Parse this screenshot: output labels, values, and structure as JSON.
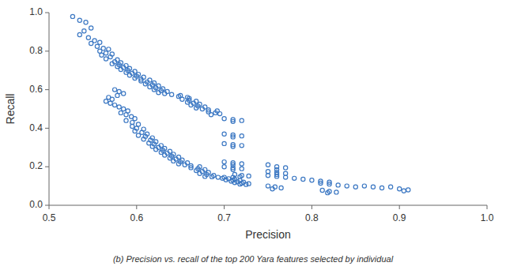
{
  "chart_data": {
    "type": "scatter",
    "xlabel": "Precision",
    "ylabel": "Recall",
    "annotations": [
      "(b) Precision vs. recall of the top 200 Yara features selected by individual"
    ],
    "xlim": [
      0.5,
      1.0
    ],
    "ylim": [
      0.0,
      1.0
    ],
    "xticks": [
      {
        "value": 0.5,
        "label": "0.5"
      },
      0.6,
      0.7,
      0.8,
      0.9,
      {
        "value": 1.0,
        "label": "1.0"
      }
    ],
    "yticks": [
      {
        "value": 0,
        "label": "0.0"
      },
      0.2,
      0.4,
      0.6,
      0.8,
      {
        "value": 1.0,
        "label": "1.0"
      }
    ],
    "color": "#3c78c3",
    "marker": "o",
    "x": [
      0.527,
      0.535,
      0.542,
      0.548,
      0.54,
      0.535,
      0.545,
      0.552,
      0.558,
      0.548,
      0.555,
      0.562,
      0.568,
      0.558,
      0.565,
      0.572,
      0.56,
      0.57,
      0.565,
      0.578,
      0.575,
      0.582,
      0.572,
      0.58,
      0.588,
      0.578,
      0.585,
      0.592,
      0.582,
      0.59,
      0.598,
      0.588,
      0.595,
      0.602,
      0.592,
      0.6,
      0.608,
      0.598,
      0.605,
      0.615,
      0.605,
      0.612,
      0.62,
      0.61,
      0.618,
      0.625,
      0.615,
      0.622,
      0.63,
      0.62,
      0.628,
      0.635,
      0.625,
      0.632,
      0.64,
      0.65,
      0.648,
      0.658,
      0.66,
      0.652,
      0.66,
      0.668,
      0.658,
      0.665,
      0.672,
      0.662,
      0.67,
      0.678,
      0.668,
      0.675,
      0.682,
      0.692,
      0.682,
      0.69,
      0.695,
      0.685,
      0.575,
      0.58,
      0.585,
      0.578,
      0.568,
      0.572,
      0.565,
      0.57,
      0.575,
      0.58,
      0.585,
      0.59,
      0.582,
      0.588,
      0.594,
      0.598,
      0.588,
      0.595,
      0.602,
      0.595,
      0.6,
      0.608,
      0.598,
      0.606,
      0.612,
      0.602,
      0.61,
      0.618,
      0.608,
      0.616,
      0.622,
      0.614,
      0.62,
      0.628,
      0.618,
      0.625,
      0.632,
      0.622,
      0.63,
      0.638,
      0.628,
      0.635,
      0.642,
      0.632,
      0.64,
      0.648,
      0.638,
      0.645,
      0.652,
      0.642,
      0.65,
      0.658,
      0.648,
      0.655,
      0.662,
      0.672,
      0.662,
      0.67,
      0.678,
      0.668,
      0.675,
      0.682,
      0.672,
      0.68,
      0.688,
      0.678,
      0.686,
      0.693,
      0.7,
      0.71,
      0.698,
      0.705,
      0.712,
      0.702,
      0.71,
      0.718,
      0.708,
      0.715,
      0.722,
      0.712,
      0.72,
      0.728,
      0.718,
      0.725,
      0.712,
      0.72,
      0.728,
      0.718,
      0.7,
      0.71,
      0.72,
      0.71,
      0.7,
      0.71,
      0.72,
      0.71,
      0.7,
      0.71,
      0.72,
      0.71,
      0.7,
      0.71,
      0.72,
      0.71,
      0.7,
      0.71,
      0.72,
      0.71,
      0.75,
      0.76,
      0.77,
      0.76,
      0.75,
      0.76,
      0.77,
      0.76,
      0.75,
      0.76,
      0.77,
      0.78,
      0.79,
      0.8,
      0.81,
      0.82,
      0.81,
      0.82,
      0.83,
      0.84,
      0.85,
      0.86,
      0.87,
      0.88,
      0.89,
      0.9,
      0.91,
      0.905,
      0.812,
      0.82,
      0.828,
      0.818,
      0.75,
      0.758,
      0.765,
      0.755
    ],
    "values": [
      0.98,
      0.96,
      0.95,
      0.92,
      0.905,
      0.885,
      0.87,
      0.855,
      0.845,
      0.84,
      0.825,
      0.815,
      0.81,
      0.8,
      0.79,
      0.785,
      0.78,
      0.77,
      0.76,
      0.755,
      0.745,
      0.74,
      0.735,
      0.73,
      0.725,
      0.72,
      0.715,
      0.71,
      0.705,
      0.7,
      0.695,
      0.69,
      0.685,
      0.68,
      0.675,
      0.67,
      0.665,
      0.66,
      0.655,
      0.65,
      0.645,
      0.64,
      0.635,
      0.63,
      0.625,
      0.62,
      0.615,
      0.61,
      0.605,
      0.6,
      0.595,
      0.59,
      0.585,
      0.58,
      0.575,
      0.57,
      0.565,
      0.56,
      0.555,
      0.55,
      0.545,
      0.54,
      0.535,
      0.53,
      0.525,
      0.52,
      0.515,
      0.51,
      0.505,
      0.5,
      0.495,
      0.49,
      0.485,
      0.48,
      0.475,
      0.47,
      0.6,
      0.59,
      0.58,
      0.57,
      0.56,
      0.55,
      0.54,
      0.53,
      0.52,
      0.51,
      0.5,
      0.49,
      0.48,
      0.47,
      0.46,
      0.45,
      0.44,
      0.43,
      0.42,
      0.41,
      0.4,
      0.395,
      0.385,
      0.378,
      0.37,
      0.363,
      0.358,
      0.35,
      0.343,
      0.338,
      0.33,
      0.323,
      0.318,
      0.31,
      0.305,
      0.3,
      0.295,
      0.29,
      0.285,
      0.28,
      0.275,
      0.27,
      0.265,
      0.26,
      0.255,
      0.25,
      0.245,
      0.24,
      0.235,
      0.23,
      0.225,
      0.22,
      0.215,
      0.21,
      0.205,
      0.2,
      0.195,
      0.19,
      0.185,
      0.18,
      0.175,
      0.17,
      0.165,
      0.16,
      0.155,
      0.15,
      0.148,
      0.145,
      0.145,
      0.145,
      0.14,
      0.138,
      0.135,
      0.132,
      0.13,
      0.128,
      0.125,
      0.122,
      0.12,
      0.118,
      0.115,
      0.112,
      0.11,
      0.108,
      0.16,
      0.155,
      0.152,
      0.148,
      0.2,
      0.195,
      0.19,
      0.185,
      0.225,
      0.22,
      0.215,
      0.21,
      0.45,
      0.445,
      0.44,
      0.435,
      0.37,
      0.365,
      0.36,
      0.355,
      0.32,
      0.315,
      0.31,
      0.305,
      0.21,
      0.2,
      0.195,
      0.185,
      0.175,
      0.17,
      0.165,
      0.16,
      0.155,
      0.15,
      0.145,
      0.14,
      0.135,
      0.13,
      0.125,
      0.12,
      0.115,
      0.11,
      0.105,
      0.1,
      0.095,
      0.1,
      0.095,
      0.09,
      0.095,
      0.085,
      0.08,
      0.075,
      0.078,
      0.072,
      0.068,
      0.065,
      0.1,
      0.095,
      0.09,
      0.085
    ]
  }
}
